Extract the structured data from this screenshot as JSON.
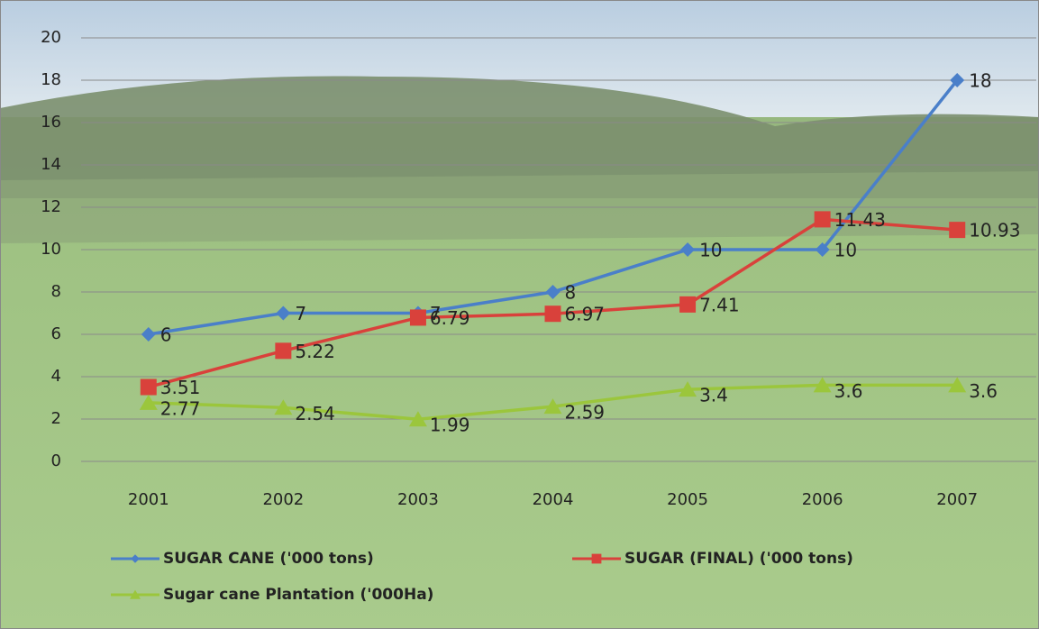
{
  "chart_data": {
    "type": "line",
    "categories": [
      "2001",
      "2002",
      "2003",
      "2004",
      "2005",
      "2006",
      "2007"
    ],
    "series": [
      {
        "name": "SUGAR CANE ('000 tons)",
        "color": "#4a7fc9",
        "marker": "diamond",
        "values": [
          6,
          7,
          7,
          8,
          10,
          10,
          18
        ]
      },
      {
        "name": "SUGAR (FINAL) ('000 tons)",
        "color": "#d9413b",
        "marker": "square",
        "values": [
          3.51,
          5.22,
          6.79,
          6.97,
          7.41,
          11.43,
          10.93
        ]
      },
      {
        "name": "Sugar cane Plantation ('000Ha)",
        "color": "#9bc63c",
        "marker": "triangle",
        "values": [
          2.77,
          2.54,
          1.99,
          2.59,
          3.4,
          3.6,
          3.6
        ]
      }
    ],
    "ylim": [
      0,
      20
    ],
    "yticks": [
      0,
      2,
      4,
      6,
      8,
      10,
      12,
      14,
      16,
      18,
      20
    ],
    "grid": true,
    "legend": "bottom"
  }
}
